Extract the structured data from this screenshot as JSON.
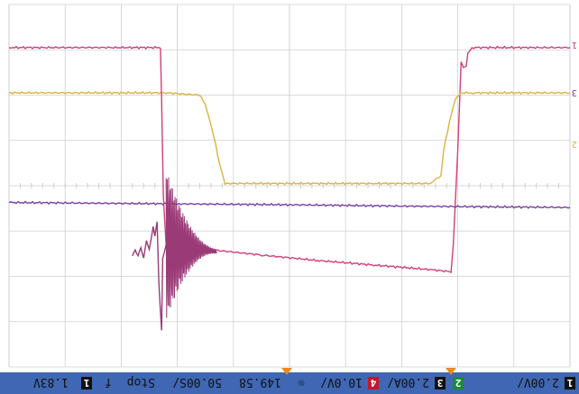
{
  "chart_data": {
    "type": "line",
    "title": "",
    "xlabel": "",
    "ylabel": "",
    "grid": true,
    "orientation": "rotated-180",
    "xlim": [
      0,
      10
    ],
    "ylim": [
      -4,
      4
    ],
    "series": [
      {
        "id": "magenta-trace",
        "color": "#d0407a",
        "values": [
          [
            0.0,
            -3.05
          ],
          [
            1.75,
            -3.05
          ],
          [
            1.82,
            -2.92
          ],
          [
            1.85,
            -2.65
          ],
          [
            1.9,
            -2.6
          ],
          [
            1.94,
            -2.75
          ],
          [
            2.0,
            -0.8
          ],
          [
            2.08,
            1.3
          ],
          [
            2.12,
            1.9
          ],
          [
            2.5,
            1.85
          ],
          [
            3.5,
            1.75
          ],
          [
            4.5,
            1.65
          ],
          [
            5.5,
            1.53
          ],
          [
            6.5,
            1.4
          ],
          [
            7.0,
            1.32
          ],
          [
            7.2,
            1.3
          ]
        ]
      },
      {
        "id": "yellow-trace",
        "color": "#d8b440",
        "values": [
          [
            0.0,
            -2.05
          ],
          [
            1.75,
            -2.05
          ],
          [
            1.95,
            -2.05
          ],
          [
            2.05,
            -1.9
          ],
          [
            2.15,
            -1.4
          ],
          [
            2.25,
            -0.8
          ],
          [
            2.3,
            -0.22
          ],
          [
            2.5,
            -0.05
          ],
          [
            3.5,
            -0.05
          ],
          [
            4.6,
            -0.05
          ],
          [
            6.15,
            -0.05
          ],
          [
            6.25,
            -0.5
          ],
          [
            6.35,
            -1.1
          ],
          [
            6.5,
            -1.8
          ],
          [
            6.6,
            -2.0
          ],
          [
            7.2,
            -2.05
          ],
          [
            10.0,
            -2.05
          ]
        ]
      },
      {
        "id": "purple-trace",
        "color": "#7a3ea0",
        "values": [
          [
            0.0,
            0.48
          ],
          [
            3.0,
            0.45
          ],
          [
            5.0,
            0.42
          ],
          [
            7.0,
            0.4
          ],
          [
            10.0,
            0.37
          ]
        ]
      },
      {
        "id": "ringing-trace",
        "color": "#9a3a76",
        "values": [
          [
            7.2,
            1.3
          ],
          [
            7.26,
            1.6
          ],
          [
            7.28,
            3.2
          ],
          [
            7.33,
            2.1
          ],
          [
            7.36,
            0.8
          ],
          [
            7.4,
            1.1
          ],
          [
            7.43,
            0.9
          ],
          [
            7.5,
            1.4
          ],
          [
            7.55,
            1.2
          ],
          [
            7.6,
            1.6
          ],
          [
            7.65,
            1.35
          ],
          [
            7.7,
            1.55
          ],
          [
            7.75,
            1.4
          ],
          [
            7.8,
            1.55
          ]
        ]
      },
      {
        "id": "fall-trace",
        "color": "#d0407a",
        "values": [
          [
            7.2,
            1.3
          ],
          [
            7.25,
            0.2
          ],
          [
            7.28,
            -1.9
          ],
          [
            7.3,
            -3.05
          ],
          [
            10.0,
            -3.05
          ]
        ]
      }
    ]
  },
  "status_bar": {
    "ch1_label": "1",
    "ch1_value": "2.00V/",
    "ch2_label": "2",
    "ch3_label": "3",
    "ch3_value": "2.00A/",
    "ch4_label": "4",
    "ch4_value": "10.0V/",
    "time_value": "149.58",
    "sample_value": "50.00S/",
    "run_state": "Stop",
    "trigger_symbol": "f",
    "trigger_channel": "1",
    "trigger_value": "1.83V"
  },
  "markers": {
    "ch1": "1",
    "ch2": "2",
    "ch3": "3"
  },
  "colors": {
    "bar_bg": "#3f67b3",
    "screen_bg": "#ffffff",
    "grid": "#cfcfcf",
    "badge_green": "#1b8a3a",
    "badge_dark": "#111111",
    "badge_red": "#c01a30",
    "orange": "#e88a20"
  }
}
